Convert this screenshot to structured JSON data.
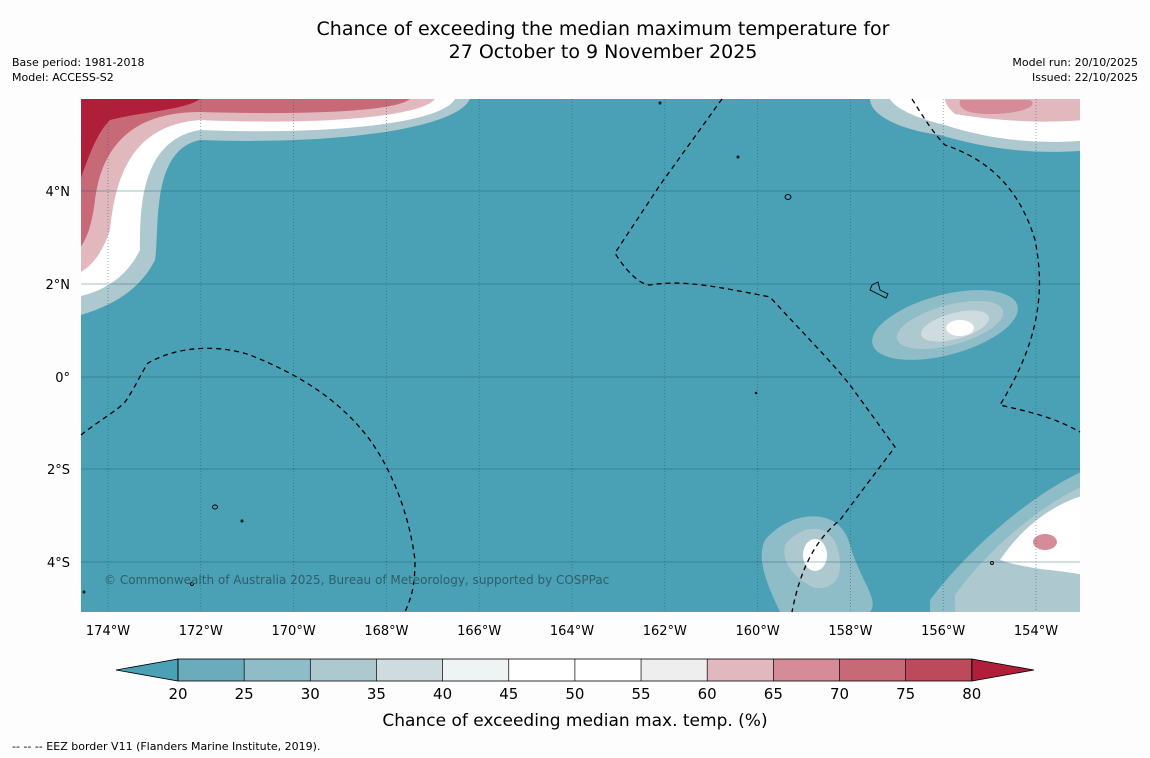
{
  "title": {
    "line1": "Chance of exceeding the median maximum temperature for",
    "line2": "27 October to 9 November 2025"
  },
  "meta_left": {
    "base_period": "Base period: 1981-2018",
    "model": "Model: ACCESS-S2"
  },
  "meta_right": {
    "model_run": "Model run: 20/10/2025",
    "issued": "Issued: 22/10/2025"
  },
  "map": {
    "copyright": "© Commonwealth of Australia 2025, Bureau of Meteorology, supported by COSPPac",
    "ocean_color": "#4aa0b4",
    "lon_ticks": [
      "174°W",
      "172°W",
      "170°W",
      "168°W",
      "166°W",
      "164°W",
      "162°W",
      "160°W",
      "158°W",
      "156°W",
      "154°W"
    ],
    "lat_ticks": [
      "4°N",
      "2°N",
      "0°",
      "2°S",
      "4°S"
    ]
  },
  "colorbar": {
    "label": "Chance of exceeding median max. temp. (%)",
    "ticks": [
      "20",
      "25",
      "30",
      "35",
      "40",
      "45",
      "50",
      "55",
      "60",
      "65",
      "70",
      "75",
      "80"
    ],
    "colors": [
      "#4aa0b4",
      "#6aacbc",
      "#8ebcc7",
      "#adc9cf",
      "#cfdcdf",
      "#eef3f4",
      "#ffffff",
      "#ffffff",
      "#eeeeee",
      "#e1b8bd",
      "#d68c98",
      "#c76976",
      "#bc4a5b",
      "#b01f3a"
    ]
  },
  "footnote": "-- -- -- EEZ border V11 (Flanders Marine Institute, 2019)."
}
